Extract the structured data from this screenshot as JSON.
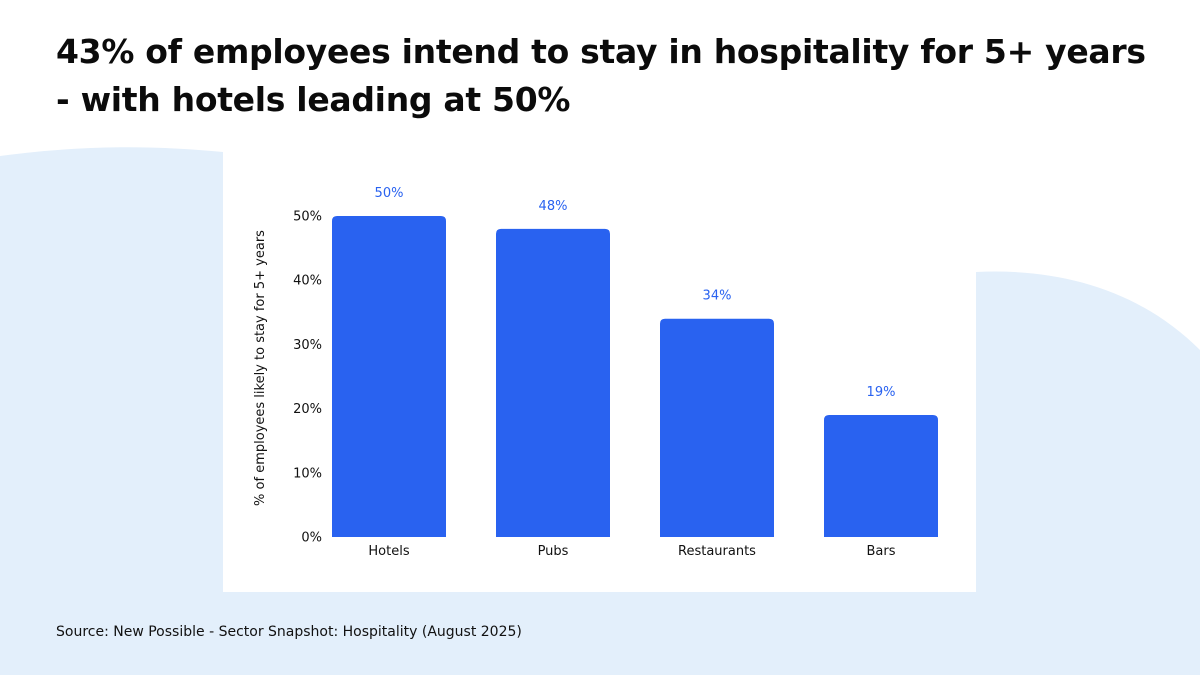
{
  "colors": {
    "bar": "#2962f0",
    "data_label": "#2962f0",
    "background_shape": "#e3effb",
    "card": "#ffffff",
    "text": "#111111"
  },
  "headline": {
    "line1": "43% of employees intend to stay in hospitality for 5+ years",
    "line2": "- with hotels leading at 50%"
  },
  "source": "Source: New Possible - Sector Snapshot: Hospitality (August 2025)",
  "chart_data": {
    "type": "bar",
    "categories": [
      "Hotels",
      "Pubs",
      "Restaurants",
      "Bars"
    ],
    "values": [
      50,
      48,
      34,
      19
    ],
    "data_labels": [
      "50%",
      "48%",
      "34%",
      "19%"
    ],
    "ylabel": "% of employees likely to stay for 5+ years",
    "xlabel": "",
    "ylim": [
      0,
      50
    ],
    "yticks": [
      0,
      10,
      20,
      30,
      40,
      50
    ],
    "ytick_labels": [
      "0%",
      "10%",
      "20%",
      "30%",
      "40%",
      "50%"
    ],
    "grid": false,
    "legend": "none"
  }
}
